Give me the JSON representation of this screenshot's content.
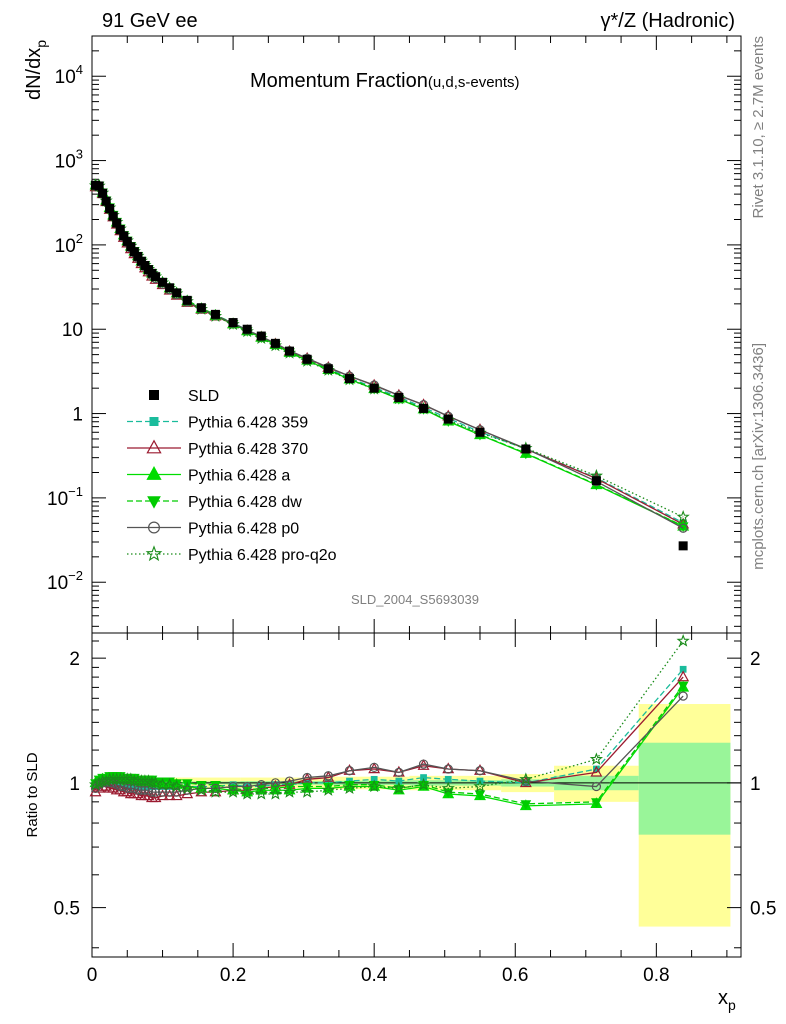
{
  "header": {
    "left": "91 GeV ee",
    "right": "γ*/Z (Hadronic)"
  },
  "side_labels": {
    "rivet": "Rivet 3.1.10, ≥ 2.7M events",
    "mcplots": "mcplots.cern.ch [arXiv:1306.3436]"
  },
  "chart_data": {
    "type": "line",
    "title_main": "Momentum Fraction",
    "title_sub": "(u,d,s-events)",
    "watermark": "SLD_2004_S5693039",
    "xlabel": "x_p",
    "top_ylabel": "dN/dx_p",
    "ratio_ylabel": "Ratio to SLD",
    "xlim": [
      0,
      0.92
    ],
    "top_ylim_log": [
      0.0025,
      30000
    ],
    "ratio_ylim": [
      0.38,
      2.3
    ],
    "x_ticks": [
      "0",
      "0.2",
      "0.4",
      "0.6",
      "0.8"
    ],
    "top_y_ticks": [
      {
        "v": 0.01,
        "label": "10",
        "exp": "−2"
      },
      {
        "v": 0.1,
        "label": "10",
        "exp": "−1"
      },
      {
        "v": 1,
        "label": "1",
        "exp": ""
      },
      {
        "v": 10,
        "label": "10",
        "exp": ""
      },
      {
        "v": 100,
        "label": "10",
        "exp": "2"
      },
      {
        "v": 1000,
        "label": "10",
        "exp": "3"
      },
      {
        "v": 10000,
        "label": "10",
        "exp": "4"
      }
    ],
    "ratio_y_ticks": [
      "0.5",
      "1",
      "2"
    ],
    "x": [
      0.005,
      0.01,
      0.015,
      0.02,
      0.025,
      0.03,
      0.035,
      0.04,
      0.045,
      0.05,
      0.055,
      0.06,
      0.065,
      0.07,
      0.075,
      0.08,
      0.085,
      0.09,
      0.1,
      0.11,
      0.12,
      0.135,
      0.155,
      0.175,
      0.2,
      0.22,
      0.24,
      0.26,
      0.28,
      0.305,
      0.335,
      0.365,
      0.4,
      0.435,
      0.47,
      0.505,
      0.55,
      0.615,
      0.715,
      0.838
    ],
    "data": {
      "name": "SLD",
      "values": [
        510,
        500,
        410,
        330,
        270,
        220,
        182,
        152,
        128,
        110,
        95,
        83,
        73,
        64,
        57,
        51,
        46,
        42,
        36,
        31,
        27,
        22,
        18,
        15,
        12,
        10,
        8.3,
        6.8,
        5.5,
        4.4,
        3.4,
        2.6,
        2.0,
        1.55,
        1.15,
        0.86,
        0.6,
        0.38,
        0.16,
        0.027
      ],
      "color": "#000000"
    },
    "series": [
      {
        "name": "Pythia 6.428 359",
        "color": "#1abc9c",
        "dash": "6,3",
        "marker": "square",
        "ratio": [
          0.98,
          1.0,
          1.0,
          1.0,
          1.0,
          1.0,
          0.99,
          0.99,
          0.99,
          0.98,
          0.98,
          0.98,
          0.98,
          0.98,
          0.98,
          0.98,
          0.98,
          0.98,
          0.98,
          0.98,
          0.98,
          0.98,
          0.98,
          0.98,
          0.99,
          0.98,
          0.98,
          0.99,
          0.99,
          1.0,
          1.0,
          1.01,
          1.02,
          1.01,
          1.03,
          1.02,
          1.01,
          1.0,
          1.08,
          1.88
        ]
      },
      {
        "name": "Pythia 6.428 370",
        "color": "#9b1b30",
        "dash": "",
        "marker": "triangle-open",
        "ratio": [
          0.95,
          0.97,
          0.98,
          0.98,
          0.97,
          0.97,
          0.96,
          0.96,
          0.95,
          0.95,
          0.94,
          0.94,
          0.94,
          0.93,
          0.93,
          0.93,
          0.92,
          0.92,
          0.93,
          0.93,
          0.93,
          0.94,
          0.95,
          0.95,
          0.96,
          0.96,
          0.97,
          0.98,
          0.99,
          1.02,
          1.03,
          1.07,
          1.08,
          1.06,
          1.1,
          1.08,
          1.07,
          1.0,
          1.06,
          1.8
        ]
      },
      {
        "name": "Pythia 6.428 a",
        "color": "#00dd00",
        "dash": "",
        "marker": "triangle",
        "ratio": [
          1.0,
          1.01,
          1.02,
          1.02,
          1.02,
          1.02,
          1.02,
          1.02,
          1.02,
          1.01,
          1.01,
          1.01,
          1.01,
          1.0,
          1.0,
          1.0,
          1.0,
          1.0,
          0.99,
          0.99,
          0.99,
          0.98,
          0.97,
          0.97,
          0.96,
          0.95,
          0.96,
          0.96,
          0.96,
          0.97,
          0.97,
          0.98,
          0.98,
          0.96,
          0.98,
          0.94,
          0.93,
          0.88,
          0.89,
          1.7
        ]
      },
      {
        "name": "Pythia 6.428 dw",
        "color": "#00cc00",
        "dash": "6,3",
        "marker": "triangle-down",
        "ratio": [
          1.0,
          1.02,
          1.03,
          1.03,
          1.04,
          1.04,
          1.04,
          1.04,
          1.03,
          1.03,
          1.03,
          1.03,
          1.02,
          1.02,
          1.02,
          1.02,
          1.02,
          1.01,
          1.01,
          1.01,
          1.0,
          1.0,
          0.99,
          0.99,
          0.97,
          0.96,
          0.97,
          0.97,
          0.98,
          0.98,
          0.98,
          0.99,
          0.99,
          0.97,
          0.99,
          0.95,
          0.94,
          0.89,
          0.9,
          1.72
        ]
      },
      {
        "name": "Pythia 6.428 p0",
        "color": "#555555",
        "dash": "",
        "marker": "circle-open",
        "ratio": [
          0.97,
          0.99,
          1.0,
          1.0,
          1.0,
          1.0,
          0.99,
          0.98,
          0.98,
          0.97,
          0.97,
          0.97,
          0.96,
          0.96,
          0.96,
          0.96,
          0.95,
          0.95,
          0.95,
          0.95,
          0.95,
          0.96,
          0.97,
          0.97,
          0.98,
          0.98,
          0.99,
          1.0,
          1.01,
          1.03,
          1.04,
          1.07,
          1.09,
          1.06,
          1.11,
          1.08,
          1.07,
          1.01,
          0.98,
          1.62
        ]
      },
      {
        "name": "Pythia 6.428 pro-q2o",
        "color": "#1a8c1a",
        "dash": "1.5,2.5",
        "marker": "star-open",
        "ratio": [
          0.99,
          1.0,
          1.01,
          1.01,
          1.02,
          1.02,
          1.02,
          1.02,
          1.02,
          1.02,
          1.02,
          1.01,
          1.01,
          1.01,
          1.01,
          1.01,
          1.0,
          1.0,
          0.99,
          0.99,
          0.98,
          0.97,
          0.96,
          0.95,
          0.95,
          0.94,
          0.94,
          0.94,
          0.95,
          0.95,
          0.96,
          0.97,
          0.98,
          0.97,
          0.99,
          0.97,
          0.98,
          1.02,
          1.14,
          2.2
        ]
      }
    ],
    "error_bands": [
      {
        "x0": 0,
        "x1": 0.095,
        "stat": 0.005,
        "tot": 0.02
      },
      {
        "x0": 0.095,
        "x1": 0.21,
        "stat": 0.008,
        "tot": 0.03
      },
      {
        "x0": 0.21,
        "x1": 0.33,
        "stat": 0.01,
        "tot": 0.03
      },
      {
        "x0": 0.33,
        "x1": 0.45,
        "stat": 0.012,
        "tot": 0.035
      },
      {
        "x0": 0.45,
        "x1": 0.58,
        "stat": 0.015,
        "tot": 0.04
      },
      {
        "x0": 0.58,
        "x1": 0.655,
        "stat": 0.02,
        "tot": 0.05
      },
      {
        "x0": 0.655,
        "x1": 0.775,
        "stat": 0.04,
        "tot": 0.1
      },
      {
        "x0": 0.775,
        "x1": 0.905,
        "stat": 0.25,
        "tot": 0.55
      }
    ],
    "legend_position": "lower-left"
  }
}
